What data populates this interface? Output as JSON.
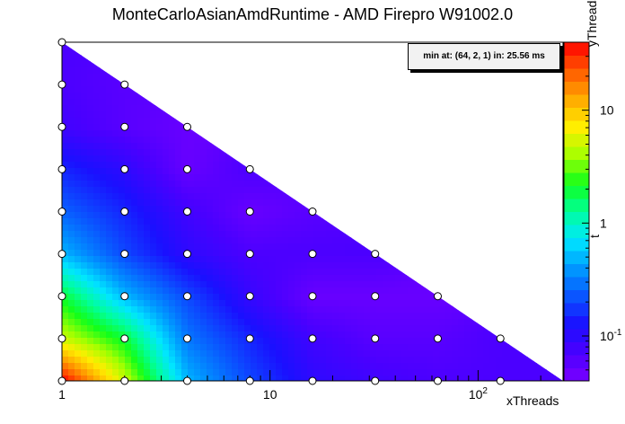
{
  "chart_data": {
    "type": "heatmap",
    "title": "MonteCarloAsianAmdRuntime - AMD Firepro W91002.0",
    "xlabel": "xThreads",
    "ylabel": "yThreads",
    "zlabel": "t",
    "x_scale": "log2",
    "y_scale": "log2",
    "z_scale": "log",
    "xlim": [
      1,
      256
    ],
    "ylim": [
      1,
      256
    ],
    "zlim": [
      0.04,
      40
    ],
    "x_tick_labels": [
      "1",
      "10",
      "10^2"
    ],
    "z_tick_labels": [
      "10^-1",
      "1",
      "10"
    ],
    "annotation": "min at: (64, 2, 1) in: 25.56 ms",
    "points": [
      {
        "x": 1,
        "y": 1,
        "t": 40
      },
      {
        "x": 2,
        "y": 1,
        "t": 5
      },
      {
        "x": 4,
        "y": 1,
        "t": 0.5
      },
      {
        "x": 8,
        "y": 1,
        "t": 0.2
      },
      {
        "x": 16,
        "y": 1,
        "t": 0.1
      },
      {
        "x": 32,
        "y": 1,
        "t": 0.08
      },
      {
        "x": 64,
        "y": 1,
        "t": 0.07
      },
      {
        "x": 128,
        "y": 1,
        "t": 0.07
      },
      {
        "x": 1,
        "y": 2,
        "t": 5
      },
      {
        "x": 2,
        "y": 2,
        "t": 2
      },
      {
        "x": 4,
        "y": 2,
        "t": 0.3
      },
      {
        "x": 8,
        "y": 2,
        "t": 0.15
      },
      {
        "x": 16,
        "y": 2,
        "t": 0.08
      },
      {
        "x": 32,
        "y": 2,
        "t": 0.06
      },
      {
        "x": 64,
        "y": 2,
        "t": 0.06
      },
      {
        "x": 128,
        "y": 2,
        "t": 0.07
      },
      {
        "x": 1,
        "y": 4,
        "t": 2
      },
      {
        "x": 2,
        "y": 4,
        "t": 0.5
      },
      {
        "x": 4,
        "y": 4,
        "t": 0.2
      },
      {
        "x": 8,
        "y": 4,
        "t": 0.09
      },
      {
        "x": 16,
        "y": 4,
        "t": 0.05
      },
      {
        "x": 32,
        "y": 4,
        "t": 0.05
      },
      {
        "x": 64,
        "y": 4,
        "t": 0.05
      },
      {
        "x": 1,
        "y": 8,
        "t": 0.5
      },
      {
        "x": 2,
        "y": 8,
        "t": 0.2
      },
      {
        "x": 4,
        "y": 8,
        "t": 0.1
      },
      {
        "x": 8,
        "y": 8,
        "t": 0.07
      },
      {
        "x": 16,
        "y": 8,
        "t": 0.07
      },
      {
        "x": 32,
        "y": 8,
        "t": 0.07
      },
      {
        "x": 1,
        "y": 16,
        "t": 0.25
      },
      {
        "x": 2,
        "y": 16,
        "t": 0.15
      },
      {
        "x": 4,
        "y": 16,
        "t": 0.08
      },
      {
        "x": 8,
        "y": 16,
        "t": 0.05
      },
      {
        "x": 16,
        "y": 16,
        "t": 0.06
      },
      {
        "x": 1,
        "y": 32,
        "t": 0.15
      },
      {
        "x": 2,
        "y": 32,
        "t": 0.1
      },
      {
        "x": 4,
        "y": 32,
        "t": 0.05
      },
      {
        "x": 8,
        "y": 32,
        "t": 0.07
      },
      {
        "x": 1,
        "y": 64,
        "t": 0.08
      },
      {
        "x": 2,
        "y": 64,
        "t": 0.06
      },
      {
        "x": 4,
        "y": 64,
        "t": 0.05
      },
      {
        "x": 1,
        "y": 128,
        "t": 0.07
      },
      {
        "x": 2,
        "y": 128,
        "t": 0.06
      },
      {
        "x": 1,
        "y": 256,
        "t": 0.07
      }
    ]
  }
}
